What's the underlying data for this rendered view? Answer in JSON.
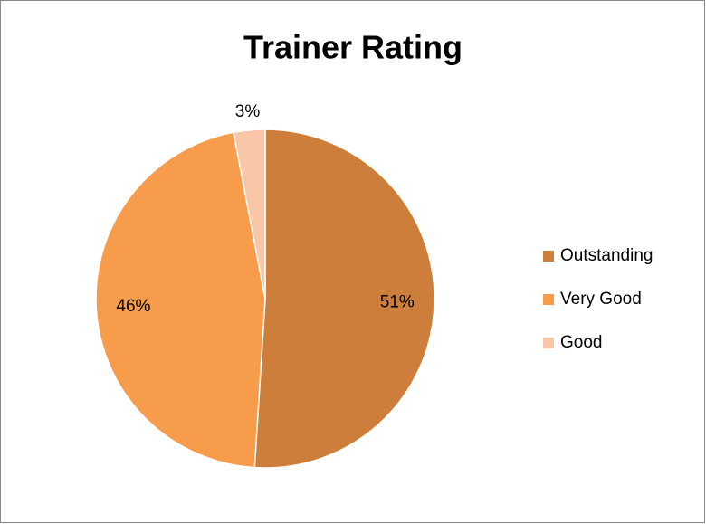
{
  "chart_data": {
    "type": "pie",
    "title": "Trainer Rating",
    "categories": [
      "Outstanding",
      "Very Good",
      "Good"
    ],
    "values": [
      51,
      46,
      3
    ],
    "value_labels": [
      "51%",
      "46%",
      "3%"
    ],
    "colors": [
      "#cd7e3a",
      "#f79c4a",
      "#f9c6a8"
    ],
    "legend": "right"
  }
}
